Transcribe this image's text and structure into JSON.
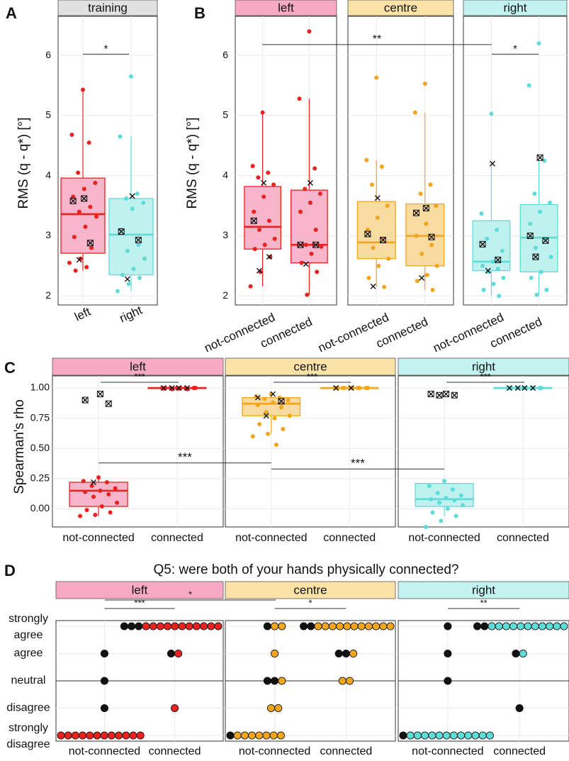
{
  "colors": {
    "left": "#e8231f",
    "left_fill": "#f7b5cc",
    "left_strip": "#f8a9c4",
    "centre": "#f2a51e",
    "centre_fill": "#f8dba0",
    "centre_strip": "#fbe3a8",
    "right": "#5fdcd8",
    "right_fill": "#bff1ef",
    "right_strip": "#c2f3f1",
    "training_strip": "#e1e1e1",
    "dark": "#111111"
  },
  "chart_data": [
    {
      "panel": "A",
      "type": "box",
      "strip": "training",
      "ylabel": "RMS (q - q*) [°]",
      "ylim": [
        1.85,
        6.65
      ],
      "yticks": [
        "2",
        "3",
        "4",
        "5",
        "6"
      ],
      "ytick_values": [
        2,
        3,
        4,
        5,
        6
      ],
      "categories": [
        "left",
        "right"
      ],
      "boxes": [
        {
          "group": "left",
          "color": "left",
          "q1": 2.71,
          "median": 3.36,
          "q3": 3.96,
          "whisker_low": 2.42,
          "whisker_high": 5.43,
          "points": [
            5.43,
            4.68,
            4.55,
            4.05,
            3.88,
            3.78,
            3.65,
            3.48,
            3.4,
            3.32,
            3.15,
            2.98,
            2.8,
            2.62,
            2.55,
            2.48,
            2.42
          ],
          "crosses": [
            3.62,
            3.58,
            2.88,
            2.6
          ]
        },
        {
          "group": "right",
          "color": "right",
          "q1": 2.35,
          "median": 3.02,
          "q3": 3.62,
          "whisker_low": 2.08,
          "whisker_high": 4.65,
          "points": [
            5.65,
            4.65,
            3.7,
            3.62,
            3.55,
            3.45,
            3.1,
            2.85,
            2.75,
            2.62,
            2.45,
            2.35,
            2.3,
            2.2,
            2.08
          ],
          "crosses": [
            3.66,
            3.07,
            2.93,
            2.28
          ]
        }
      ],
      "significance": [
        {
          "label": "*",
          "y": 6.02
        }
      ]
    },
    {
      "panel": "B",
      "type": "box",
      "ylabel": "RMS (q - q*) [°]",
      "ylim": [
        1.85,
        6.65
      ],
      "yticks": [
        "2",
        "3",
        "4",
        "5",
        "6"
      ],
      "ytick_values": [
        2,
        3,
        4,
        5,
        6
      ],
      "categories": [
        "not-connected",
        "connected"
      ],
      "facets": [
        {
          "strip": "left",
          "color": "left",
          "boxes": [
            {
              "q1": 2.78,
              "median": 3.15,
              "q3": 3.82,
              "whisker_low": 2.16,
              "whisker_high": 5.05,
              "points": [
                5.05,
                4.16,
                4.05,
                3.97,
                3.85,
                3.65,
                3.4,
                3.25,
                3.1,
                2.95,
                2.85,
                2.78,
                2.65,
                2.4,
                2.16
              ],
              "crosses": [
                3.88,
                3.25,
                2.65,
                2.42
              ]
            },
            {
              "q1": 2.55,
              "median": 2.85,
              "q3": 3.76,
              "whisker_low": 2.02,
              "whisker_high": 5.28,
              "points": [
                6.4,
                5.28,
                4.12,
                3.78,
                3.7,
                3.55,
                3.4,
                3.1,
                2.85,
                2.82,
                2.7,
                2.55,
                2.4,
                2.02
              ],
              "crosses": [
                3.88,
                2.85,
                2.85,
                2.53
              ]
            }
          ]
        },
        {
          "strip": "centre",
          "color": "centre",
          "boxes": [
            {
              "q1": 2.62,
              "median": 2.89,
              "q3": 3.57,
              "whisker_low": 2.15,
              "whisker_high": 4.26,
              "points": [
                5.63,
                4.26,
                4.15,
                3.85,
                3.5,
                3.3,
                3.1,
                2.95,
                2.8,
                2.62,
                2.5,
                2.3,
                2.15
              ],
              "crosses": [
                3.63,
                3.03,
                2.93,
                2.16
              ]
            },
            {
              "q1": 2.5,
              "median": 3.0,
              "q3": 3.53,
              "whisker_low": 2.1,
              "whisker_high": 5.05,
              "points": [
                5.53,
                5.05,
                3.85,
                3.7,
                3.5,
                3.2,
                3.0,
                2.85,
                2.7,
                2.5,
                2.35,
                2.25,
                2.1
              ],
              "crosses": [
                3.46,
                3.38,
                2.98,
                2.3
              ]
            }
          ]
        },
        {
          "strip": "right",
          "color": "right",
          "boxes": [
            {
              "q1": 2.42,
              "median": 2.57,
              "q3": 3.25,
              "whisker_low": 2.0,
              "whisker_high": 4.2,
              "points": [
                5.03,
                3.37,
                3.1,
                2.95,
                2.75,
                2.57,
                2.5,
                2.45,
                2.4,
                2.3,
                2.2,
                2.1,
                2.0
              ],
              "crosses": [
                4.2,
                2.86,
                2.6,
                2.42
              ]
            },
            {
              "q1": 2.4,
              "median": 2.97,
              "q3": 3.52,
              "whisker_low": 2.02,
              "whisker_high": 4.25,
              "points": [
                6.2,
                5.5,
                4.25,
                3.7,
                3.55,
                3.4,
                3.2,
                2.95,
                2.8,
                2.65,
                2.4,
                2.3,
                2.1,
                2.02
              ],
              "crosses": [
                4.3,
                3.0,
                2.92,
                2.65
              ]
            }
          ]
        }
      ],
      "significance": [
        {
          "label": "**",
          "y": 6.18,
          "span": "left-not-connected to right-not-connected"
        },
        {
          "label": "*",
          "y": 6.02,
          "span": "right"
        }
      ]
    },
    {
      "panel": "C",
      "type": "box",
      "ylabel": "Spearman's rho",
      "ylim": [
        -0.15,
        1.1
      ],
      "yticks": [
        "0.00",
        "0.25",
        "0.50",
        "0.75",
        "1.00"
      ],
      "ytick_values": [
        0,
        0.25,
        0.5,
        0.75,
        1.0
      ],
      "categories": [
        "not-connected",
        "connected"
      ],
      "facets": [
        {
          "strip": "left",
          "color": "left",
          "boxes": [
            {
              "q1": 0.02,
              "median": 0.15,
              "q3": 0.22,
              "whisker_low": -0.06,
              "whisker_high": 0.26,
              "points": [
                0.26,
                0.23,
                0.22,
                0.19,
                0.17,
                0.15,
                0.14,
                0.12,
                0.1,
                0.05,
                0.02,
                -0.01,
                -0.03,
                -0.05,
                -0.06
              ],
              "crosses": [
                0.95,
                0.9,
                0.87,
                0.22
              ]
            },
            {
              "q1": 1.0,
              "median": 1.0,
              "q3": 1.0,
              "whisker_low": 0.99,
              "whisker_high": 1.0,
              "points": [
                1.0,
                1.0,
                1.0,
                1.0,
                1.0,
                0.995,
                0.995,
                0.99,
                0.99,
                1.0,
                1.0,
                1.0
              ],
              "crosses": [
                1.0,
                1.0,
                1.0,
                1.0
              ]
            }
          ]
        },
        {
          "strip": "centre",
          "color": "centre",
          "boxes": [
            {
              "q1": 0.77,
              "median": 0.87,
              "q3": 0.92,
              "whisker_low": 0.62,
              "whisker_high": 0.95,
              "points": [
                0.95,
                0.93,
                0.92,
                0.91,
                0.9,
                0.88,
                0.86,
                0.84,
                0.8,
                0.77,
                0.75,
                0.7,
                0.66,
                0.62,
                0.6,
                0.53
              ],
              "crosses": [
                0.95,
                0.92,
                0.89,
                0.77
              ]
            },
            {
              "q1": 1.0,
              "median": 1.0,
              "q3": 1.0,
              "whisker_low": 1.0,
              "whisker_high": 1.0,
              "points": [
                1.0,
                1.0,
                1.0,
                1.0,
                1.0,
                1.0,
                1.0,
                1.0,
                1.0,
                1.0,
                1.0,
                1.0
              ],
              "crosses": [
                1.0,
                1.0
              ]
            }
          ]
        },
        {
          "strip": "right",
          "color": "right",
          "boxes": [
            {
              "q1": 0.02,
              "median": 0.08,
              "q3": 0.21,
              "whisker_low": -0.06,
              "whisker_high": 0.23,
              "points": [
                0.23,
                0.19,
                0.16,
                0.13,
                0.11,
                0.09,
                0.08,
                0.07,
                0.05,
                0.03,
                0.0,
                -0.03,
                -0.06,
                -0.1,
                -0.15
              ],
              "crosses": [
                0.95,
                0.95,
                0.94,
                0.94
              ]
            },
            {
              "q1": 1.0,
              "median": 1.0,
              "q3": 1.0,
              "whisker_low": 1.0,
              "whisker_high": 1.0,
              "points": [
                1.0,
                1.0,
                1.0,
                1.0,
                1.0,
                1.0,
                1.0,
                1.0,
                1.0,
                1.0,
                1.0,
                1.0
              ],
              "crosses": [
                1.0,
                1.0,
                1.0,
                1.0
              ]
            }
          ]
        }
      ],
      "significance": [
        {
          "label": "***",
          "facet": "left"
        },
        {
          "label": "***",
          "facet": "centre"
        },
        {
          "label": "***",
          "facet": "right"
        },
        {
          "label": "***",
          "between": "left-centre not-connected",
          "y": 0.38
        },
        {
          "label": "***",
          "between": "centre-right not-connected",
          "y": 0.33
        }
      ]
    },
    {
      "panel": "D",
      "type": "dot",
      "title": "Q5: were both of your hands physically connected?",
      "y_levels": [
        "strongly disagree",
        "disagree",
        "neutral",
        "agree",
        "strongly agree"
      ],
      "ytick_labels": [
        "strongly\nagree",
        "agree",
        "neutral",
        "disagree",
        "strongly\ndisagree"
      ],
      "categories": [
        "not-connected",
        "connected"
      ],
      "facets": [
        {
          "strip": "left",
          "color": "left",
          "not_connected": {
            "strongly disagree": {
              "colored": 12,
              "black": 0
            },
            "disagree": {
              "colored": 0,
              "black": 1
            },
            "neutral": {
              "colored": 0,
              "black": 1
            },
            "agree": {
              "colored": 0,
              "black": 1
            },
            "strongly agree": {
              "colored": 0,
              "black": 0
            }
          },
          "connected": {
            "strongly disagree": {
              "colored": 0,
              "black": 0
            },
            "disagree": {
              "colored": 1,
              "black": 0
            },
            "neutral": {
              "colored": 0,
              "black": 0
            },
            "agree": {
              "colored": 1,
              "black": 1
            },
            "strongly agree": {
              "colored": 11,
              "black": 3
            }
          }
        },
        {
          "strip": "centre",
          "color": "centre",
          "not_connected": {
            "strongly disagree": {
              "colored": 7,
              "black": 1
            },
            "disagree": {
              "colored": 2,
              "black": 0
            },
            "neutral": {
              "colored": 1,
              "black": 2
            },
            "agree": {
              "colored": 1,
              "black": 0
            },
            "strongly agree": {
              "colored": 2,
              "black": 1
            }
          },
          "connected": {
            "strongly disagree": {
              "colored": 0,
              "black": 0
            },
            "disagree": {
              "colored": 0,
              "black": 0
            },
            "neutral": {
              "colored": 2,
              "black": 0
            },
            "agree": {
              "colored": 1,
              "black": 2
            },
            "strongly agree": {
              "colored": 11,
              "black": 2
            }
          }
        },
        {
          "strip": "right",
          "color": "right",
          "not_connected": {
            "strongly disagree": {
              "colored": 12,
              "black": 1
            },
            "disagree": {
              "colored": 0,
              "black": 0
            },
            "neutral": {
              "colored": 0,
              "black": 1
            },
            "agree": {
              "colored": 0,
              "black": 1
            },
            "strongly agree": {
              "colored": 0,
              "black": 1
            }
          },
          "connected": {
            "strongly disagree": {
              "colored": 0,
              "black": 0
            },
            "disagree": {
              "colored": 0,
              "black": 1
            },
            "neutral": {
              "colored": 0,
              "black": 0
            },
            "agree": {
              "colored": 1,
              "black": 1
            },
            "strongly agree": {
              "colored": 11,
              "black": 2
            }
          }
        }
      ],
      "significance": [
        {
          "label": "***",
          "facet": "left"
        },
        {
          "label": "*",
          "between": "left-centre not-connected"
        },
        {
          "label": "*",
          "facet": "centre"
        },
        {
          "label": "**",
          "facet": "right"
        }
      ]
    }
  ]
}
